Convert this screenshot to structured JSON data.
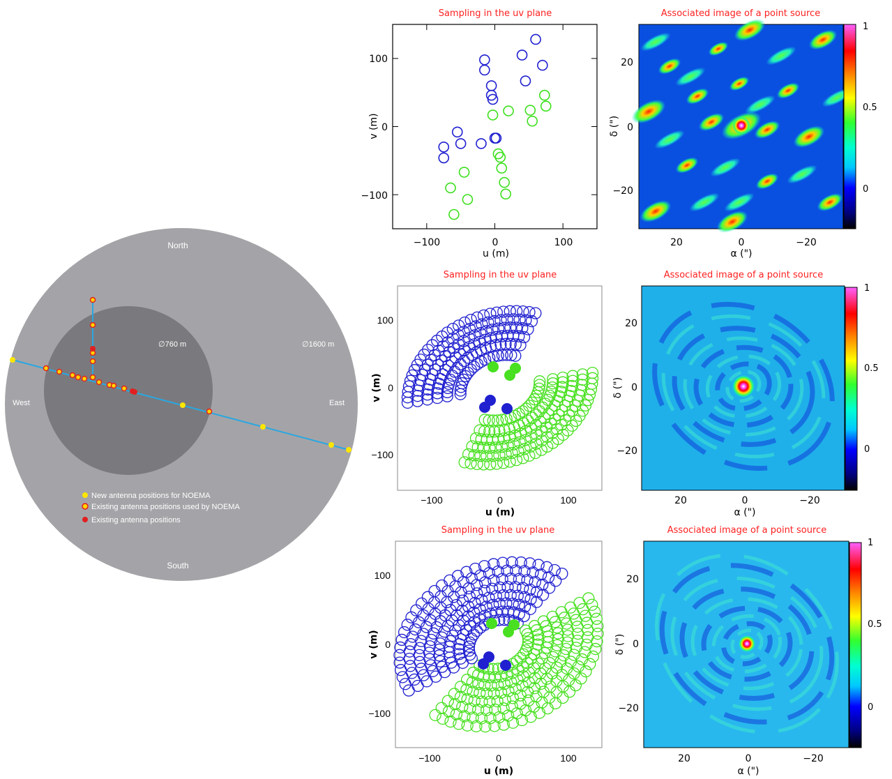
{
  "site_map": {
    "directions": {
      "north": "North",
      "south": "South",
      "east": "East",
      "west": "West"
    },
    "inner_diameter_label": "∅760 m",
    "outer_diameter_label": "∅1600 m",
    "legend": [
      {
        "label": "New antenna positions for NOEMA",
        "color": "#ffe600"
      },
      {
        "label": "Existing antenna positions used by NOEMA",
        "color": "#ffd400",
        "ring": "#e02020"
      },
      {
        "label": "Existing antenna positions",
        "color": "#e02020"
      }
    ],
    "colors": {
      "outer": "#a4a4a8",
      "inner": "#7a7a7e",
      "track": "#2aa7e0"
    }
  },
  "chart_data": [
    {
      "type": "scatter",
      "title": "Sampling in the uv plane",
      "xlabel": "u (m)",
      "ylabel": "v (m)",
      "xlim": [
        -150,
        150
      ],
      "ylim": [
        -150,
        150
      ],
      "xticks": [
        "−100",
        "0",
        "100"
      ],
      "yticks": [
        "100",
        "0",
        "−100"
      ],
      "series": [
        {
          "color": "#2020d0",
          "x": [
            60,
            40,
            70,
            45,
            -15,
            -15,
            -5,
            -5,
            -3,
            0,
            -55,
            -75,
            -75,
            -50,
            -20,
            2
          ],
          "y": [
            128,
            105,
            90,
            67,
            98,
            83,
            60,
            46,
            40,
            -17,
            -8,
            -30,
            -46,
            -25,
            -25,
            -17
          ]
        },
        {
          "color": "#3ddf1d",
          "x": [
            73,
            75,
            52,
            55,
            20,
            -3,
            5,
            8,
            10,
            14,
            16,
            -45,
            -65,
            -40,
            -60
          ],
          "y": [
            46,
            30,
            24,
            8,
            23,
            17,
            -40,
            -45,
            -61,
            -82,
            -99,
            -67,
            -90,
            -107,
            -129
          ]
        }
      ]
    },
    {
      "type": "heatmap",
      "title": "Associated image of a point source",
      "xlabel": "α (\")",
      "ylabel": "δ (\")",
      "xlim": [
        33,
        -33
      ],
      "ylim": [
        -33,
        33
      ],
      "xticks": [
        "20",
        "0",
        "−20"
      ],
      "yticks": [
        "20",
        "0",
        "−20"
      ],
      "colorbar_ticks": [
        "1",
        "0.5",
        "0"
      ],
      "colorbar_range": [
        -0.25,
        1.05
      ]
    },
    {
      "type": "scatter",
      "title": "Sampling in the uv plane",
      "xlabel": "u (m)",
      "ylabel": "v (m)",
      "xlim": [
        -150,
        150
      ],
      "ylim": [
        -150,
        150
      ],
      "xticks": [
        "−100",
        "0",
        "100"
      ],
      "yticks": [
        "100",
        "0",
        "−100"
      ],
      "tracks": "earth-rotation arcs (blue and green symmetric halves)"
    },
    {
      "type": "heatmap",
      "title": "Associated image of a point source",
      "xlabel": "α (\")",
      "ylabel": "δ (\")",
      "xlim": [
        33,
        -33
      ],
      "ylim": [
        -33,
        33
      ],
      "xticks": [
        "20",
        "0",
        "−20"
      ],
      "yticks": [
        "20",
        "0",
        "−20"
      ],
      "colorbar_ticks": [
        "1",
        "0.5",
        "0"
      ],
      "colorbar_range": [
        -0.25,
        1.05
      ]
    },
    {
      "type": "scatter",
      "title": "Sampling in the uv plane",
      "xlabel": "u (m)",
      "ylabel": "v (m)",
      "xlim": [
        -150,
        150
      ],
      "ylim": [
        -150,
        150
      ],
      "xticks": [
        "−100",
        "0",
        "100"
      ],
      "yticks": [
        "100",
        "0",
        "−100"
      ],
      "tracks": "earth-rotation arcs (blue and green symmetric halves)"
    },
    {
      "type": "heatmap",
      "title": "Associated image of a point source",
      "xlabel": "α (\")",
      "ylabel": "δ (\")",
      "xlim": [
        33,
        -33
      ],
      "ylim": [
        -33,
        33
      ],
      "xticks": [
        "20",
        "0",
        "−20"
      ],
      "yticks": [
        "20",
        "0",
        "−20"
      ],
      "colorbar_ticks": [
        "1",
        "0.5",
        "0"
      ],
      "colorbar_range": [
        -0.25,
        1.05
      ]
    }
  ]
}
